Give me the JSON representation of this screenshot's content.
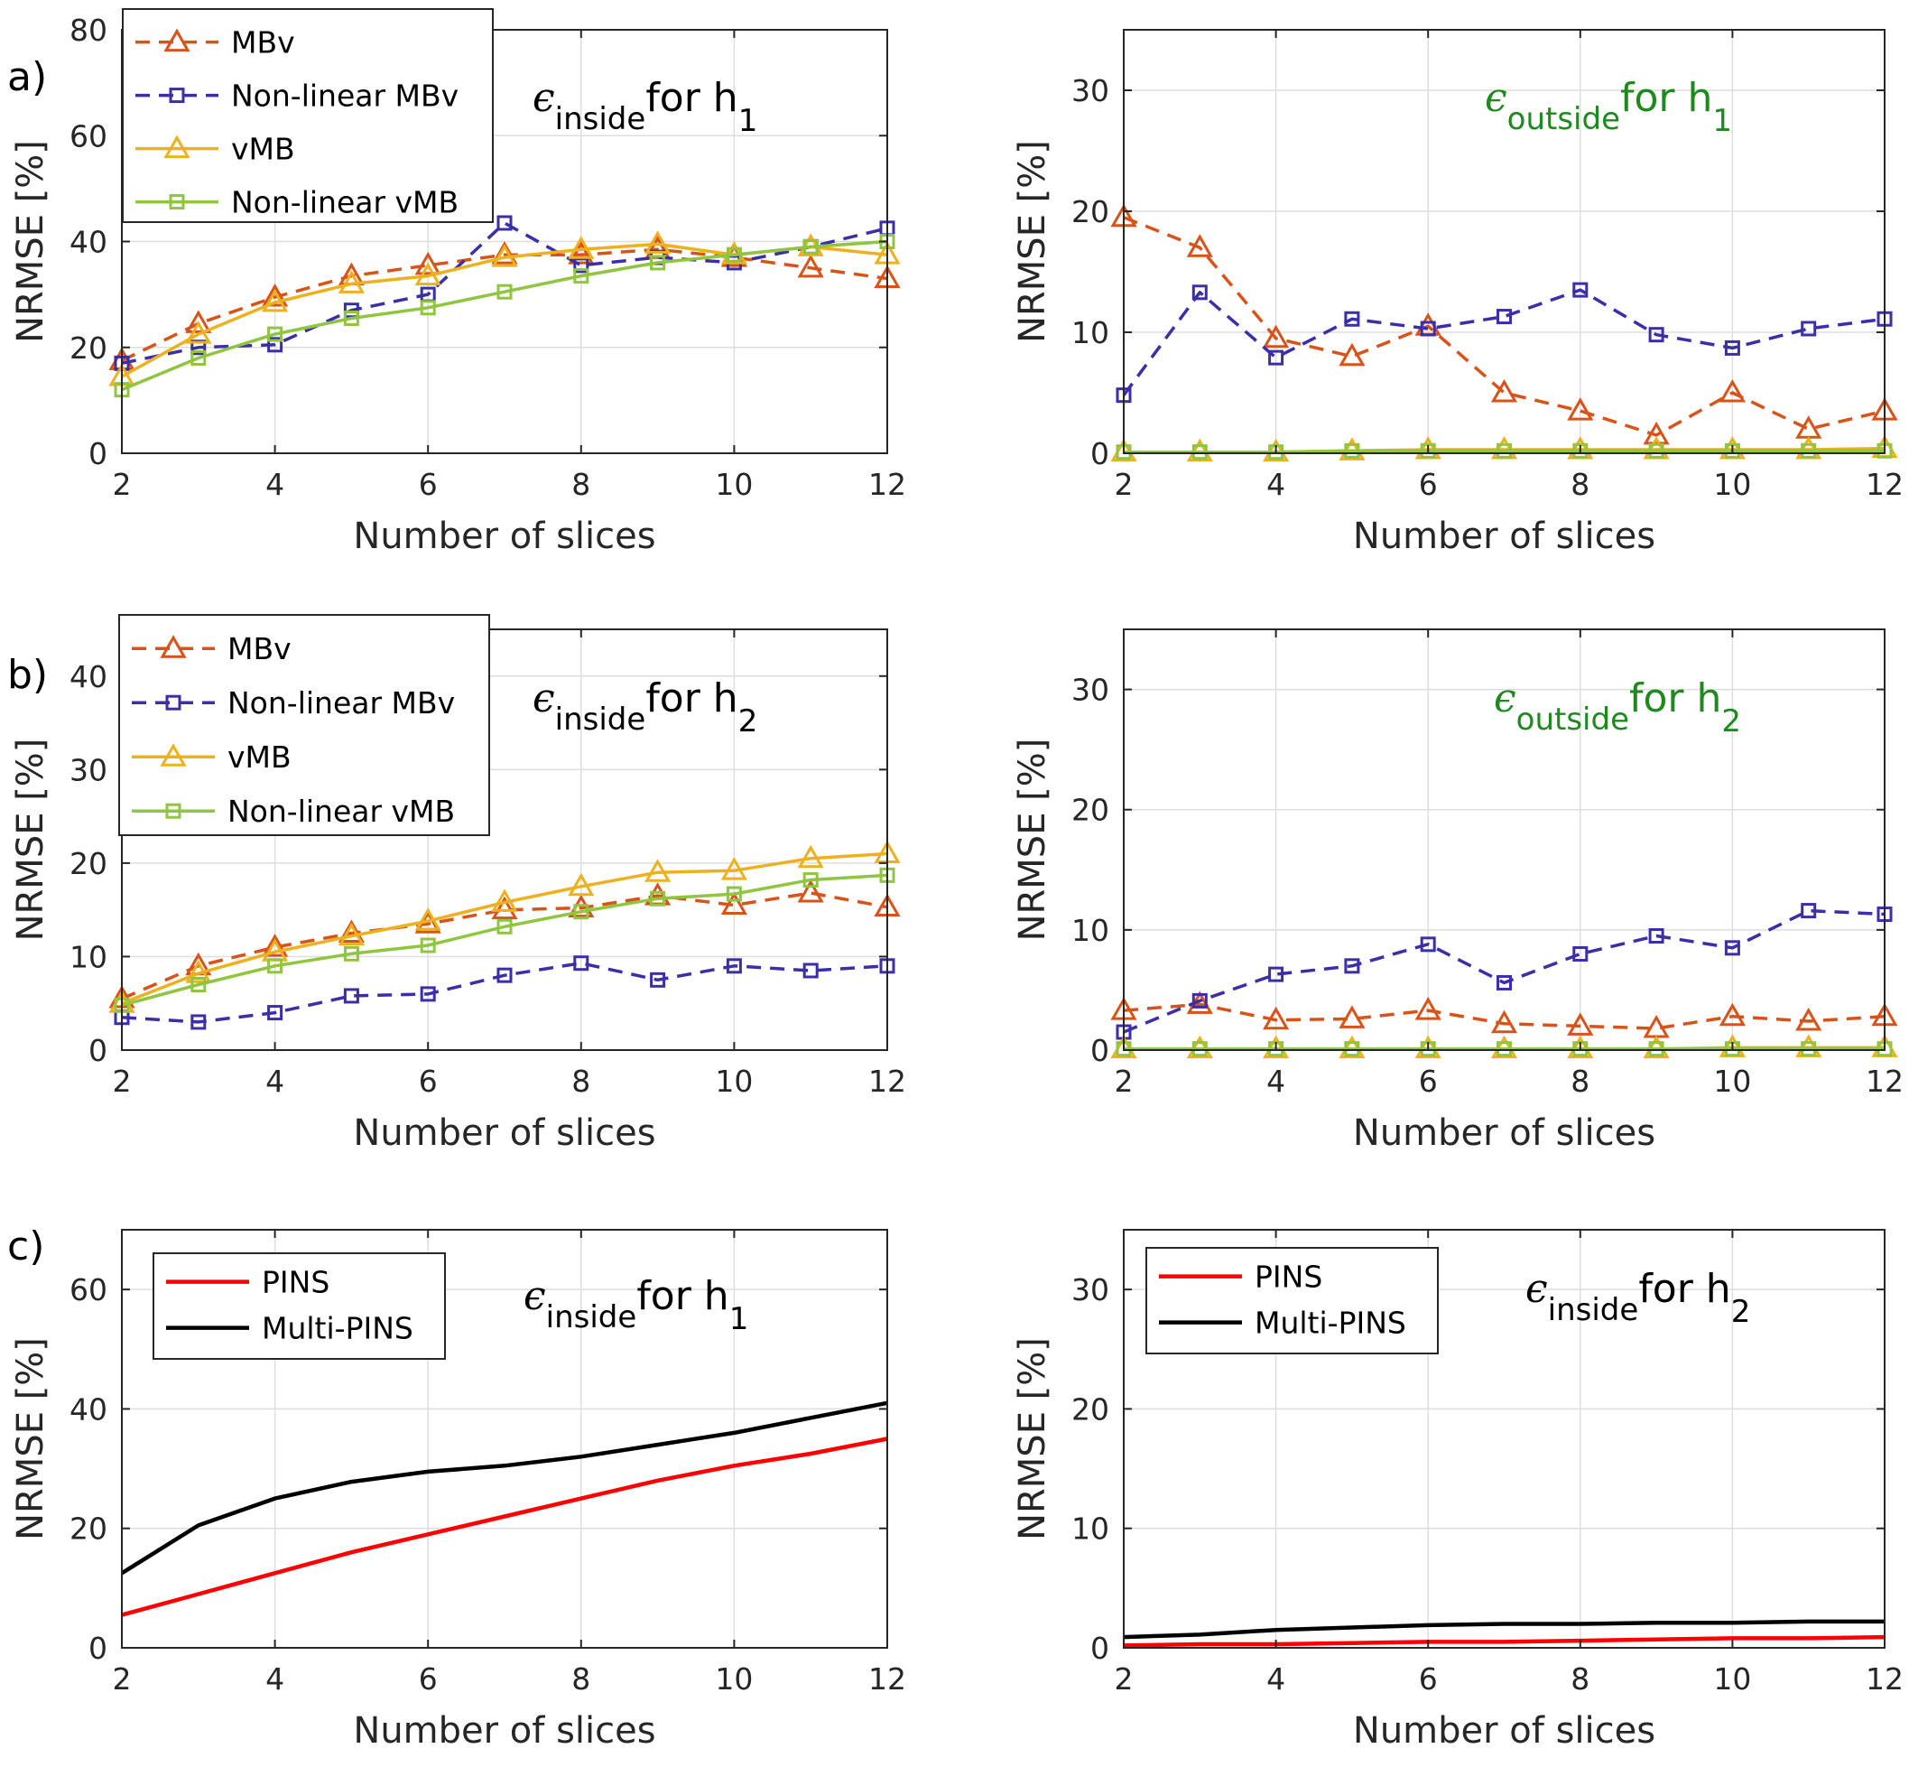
{
  "chart_data": [
    {
      "type": "line",
      "panel_label": "a)",
      "annotation": {
        "symbol": "ϵ",
        "sub": "inside",
        "text": "for h",
        "sub2": "1",
        "color": "#000000"
      },
      "xlabel": "Number of slices",
      "ylabel": "NRMSE [%]",
      "xlim": [
        2,
        12
      ],
      "ylim": [
        0,
        80
      ],
      "xticks": [
        2,
        4,
        6,
        8,
        10,
        12
      ],
      "yticks": [
        0,
        20,
        40,
        60,
        80
      ],
      "grid": true,
      "legend": "top-left",
      "x": [
        2,
        3,
        4,
        5,
        6,
        7,
        8,
        9,
        10,
        11,
        12
      ],
      "series": [
        {
          "name": "MBv",
          "color": "#D95319",
          "dash": true,
          "marker": "triangle",
          "values": [
            17.5,
            24.5,
            29.5,
            33.5,
            35.5,
            37.5,
            37.5,
            38.5,
            37,
            35,
            33
          ]
        },
        {
          "name": "Non-linear MBv",
          "color": "#3A2FA8",
          "dash": true,
          "marker": "square",
          "values": [
            17,
            20,
            20.5,
            27,
            30,
            43.5,
            35.5,
            37,
            36,
            39,
            42.5
          ]
        },
        {
          "name": "vMB",
          "color": "#EDB120",
          "dash": false,
          "marker": "triangle",
          "values": [
            14.5,
            22.5,
            28.5,
            32,
            33.5,
            37,
            38.5,
            39.5,
            37.5,
            39,
            37.5
          ]
        },
        {
          "name": "Non-linear vMB",
          "color": "#8FC53F",
          "dash": false,
          "marker": "square",
          "values": [
            12,
            18,
            22.5,
            25.5,
            27.5,
            30.5,
            33.5,
            36,
            37.5,
            39,
            40
          ]
        }
      ]
    },
    {
      "type": "line",
      "panel_label": "",
      "annotation": {
        "symbol": "ϵ",
        "sub": "outside",
        "text": "for h",
        "sub2": "1",
        "color": "#1E8A1E"
      },
      "xlabel": "Number of slices",
      "ylabel": "NRMSE [%]",
      "xlim": [
        2,
        12
      ],
      "ylim": [
        0,
        35
      ],
      "xticks": [
        2,
        4,
        6,
        8,
        10,
        12
      ],
      "yticks": [
        0,
        10,
        20,
        30
      ],
      "grid": true,
      "x": [
        2,
        3,
        4,
        5,
        6,
        7,
        8,
        9,
        10,
        11,
        12
      ],
      "series": [
        {
          "name": "MBv",
          "color": "#D95319",
          "dash": true,
          "marker": "triangle",
          "values": [
            19.5,
            17,
            9.5,
            8,
            10.5,
            5,
            3.5,
            1.5,
            5,
            2,
            3.5
          ]
        },
        {
          "name": "Non-linear MBv",
          "color": "#3A2FA8",
          "dash": true,
          "marker": "square",
          "values": [
            4.8,
            13.3,
            7.9,
            11.1,
            10.3,
            11.3,
            13.5,
            9.8,
            8.7,
            10.3,
            11.1
          ]
        },
        {
          "name": "vMB",
          "color": "#EDB120",
          "dash": false,
          "marker": "triangle",
          "values": [
            0.1,
            0.1,
            0.1,
            0.2,
            0.3,
            0.3,
            0.3,
            0.3,
            0.3,
            0.3,
            0.4
          ]
        },
        {
          "name": "Non-linear vMB",
          "color": "#8FC53F",
          "dash": false,
          "marker": "square",
          "values": [
            0.1,
            0.1,
            0.1,
            0.2,
            0.2,
            0.2,
            0.2,
            0.2,
            0.2,
            0.2,
            0.2
          ]
        }
      ]
    },
    {
      "type": "line",
      "panel_label": "b)",
      "annotation": {
        "symbol": "ϵ",
        "sub": "inside",
        "text": "for h",
        "sub2": "2",
        "color": "#000000"
      },
      "xlabel": "Number of slices",
      "ylabel": "NRMSE [%]",
      "xlim": [
        2,
        12
      ],
      "ylim": [
        0,
        45
      ],
      "xticks": [
        2,
        4,
        6,
        8,
        10,
        12
      ],
      "yticks": [
        0,
        10,
        20,
        30,
        40
      ],
      "grid": true,
      "legend": "top-left",
      "x": [
        2,
        3,
        4,
        5,
        6,
        7,
        8,
        9,
        10,
        11,
        12
      ],
      "series": [
        {
          "name": "MBv",
          "color": "#D95319",
          "dash": true,
          "marker": "triangle",
          "values": [
            5.5,
            9,
            11,
            12.5,
            13.5,
            15,
            15.2,
            16.5,
            15.5,
            16.8,
            15.3
          ]
        },
        {
          "name": "Non-linear MBv",
          "color": "#3A2FA8",
          "dash": true,
          "marker": "square",
          "values": [
            3.5,
            3,
            4,
            5.8,
            6,
            8,
            9.3,
            7.5,
            9,
            8.5,
            9
          ]
        },
        {
          "name": "vMB",
          "color": "#EDB120",
          "dash": false,
          "marker": "triangle",
          "values": [
            5,
            8.2,
            10.5,
            12.2,
            13.8,
            15.8,
            17.5,
            19,
            19.2,
            20.5,
            21
          ]
        },
        {
          "name": "Non-linear vMB",
          "color": "#8FC53F",
          "dash": false,
          "marker": "square",
          "values": [
            4.8,
            7,
            9,
            10.3,
            11.2,
            13.2,
            14.8,
            16.2,
            16.7,
            18.2,
            18.7
          ]
        }
      ]
    },
    {
      "type": "line",
      "panel_label": "",
      "annotation": {
        "symbol": "ϵ",
        "sub": "outside",
        "text": "for h",
        "sub2": "2",
        "color": "#1E8A1E"
      },
      "xlabel": "Number of slices",
      "ylabel": "NRMSE [%]",
      "xlim": [
        2,
        12
      ],
      "ylim": [
        0,
        35
      ],
      "xticks": [
        2,
        4,
        6,
        8,
        10,
        12
      ],
      "yticks": [
        0,
        10,
        20,
        30
      ],
      "grid": true,
      "x": [
        2,
        3,
        4,
        5,
        6,
        7,
        8,
        9,
        10,
        11,
        12
      ],
      "series": [
        {
          "name": "MBv",
          "color": "#D95319",
          "dash": true,
          "marker": "triangle",
          "values": [
            3.3,
            3.8,
            2.5,
            2.6,
            3.3,
            2.2,
            2,
            1.8,
            2.8,
            2.4,
            2.8
          ]
        },
        {
          "name": "Non-linear MBv",
          "color": "#3A2FA8",
          "dash": true,
          "marker": "square",
          "values": [
            1.5,
            4.1,
            6.3,
            7,
            8.8,
            5.6,
            8,
            9.5,
            8.5,
            11.6,
            11.3
          ]
        },
        {
          "name": "vMB",
          "color": "#EDB120",
          "dash": false,
          "marker": "triangle",
          "values": [
            0.1,
            0.1,
            0.1,
            0.1,
            0.1,
            0.1,
            0.1,
            0.1,
            0.2,
            0.2,
            0.2
          ]
        },
        {
          "name": "Non-linear vMB",
          "color": "#8FC53F",
          "dash": false,
          "marker": "square",
          "values": [
            0.1,
            0.1,
            0.1,
            0.1,
            0.1,
            0.1,
            0.1,
            0.1,
            0.1,
            0.1,
            0.1
          ]
        }
      ]
    },
    {
      "type": "line",
      "panel_label": "c)",
      "annotation": {
        "symbol": "ϵ",
        "sub": "inside",
        "text": "for h",
        "sub2": "1",
        "color": "#000000"
      },
      "xlabel": "Number of slices",
      "ylabel": "NRMSE [%]",
      "xlim": [
        2,
        12
      ],
      "ylim": [
        0,
        70
      ],
      "xticks": [
        2,
        4,
        6,
        8,
        10,
        12
      ],
      "yticks": [
        0,
        20,
        40,
        60
      ],
      "grid": true,
      "legend": "top-left",
      "x": [
        2,
        3,
        4,
        5,
        6,
        7,
        8,
        9,
        10,
        11,
        12
      ],
      "series": [
        {
          "name": "PINS",
          "color": "#FF0000",
          "dash": false,
          "marker": "none",
          "values": [
            5.5,
            9,
            12.5,
            16,
            19,
            22,
            25,
            28,
            30.5,
            32.5,
            35
          ]
        },
        {
          "name": "Multi-PINS",
          "color": "#000000",
          "dash": false,
          "marker": "none",
          "values": [
            12.5,
            20.5,
            25,
            27.8,
            29.5,
            30.5,
            32,
            34,
            36,
            38.5,
            41
          ]
        }
      ]
    },
    {
      "type": "line",
      "panel_label": "",
      "annotation": {
        "symbol": "ϵ",
        "sub": "inside",
        "text": "for h",
        "sub2": "2",
        "color": "#000000"
      },
      "xlabel": "Number of slices",
      "ylabel": "NRMSE [%]",
      "xlim": [
        2,
        12
      ],
      "ylim": [
        0,
        35
      ],
      "xticks": [
        2,
        4,
        6,
        8,
        10,
        12
      ],
      "yticks": [
        0,
        10,
        20,
        30
      ],
      "grid": true,
      "legend": "top-left",
      "x": [
        2,
        3,
        4,
        5,
        6,
        7,
        8,
        9,
        10,
        11,
        12
      ],
      "series": [
        {
          "name": "PINS",
          "color": "#FF0000",
          "dash": false,
          "marker": "none",
          "values": [
            0.2,
            0.3,
            0.3,
            0.4,
            0.5,
            0.5,
            0.6,
            0.7,
            0.8,
            0.8,
            0.9
          ]
        },
        {
          "name": "Multi-PINS",
          "color": "#000000",
          "dash": false,
          "marker": "none",
          "values": [
            0.9,
            1.1,
            1.5,
            1.7,
            1.9,
            2,
            2,
            2.1,
            2.1,
            2.2,
            2.2
          ]
        }
      ]
    }
  ]
}
